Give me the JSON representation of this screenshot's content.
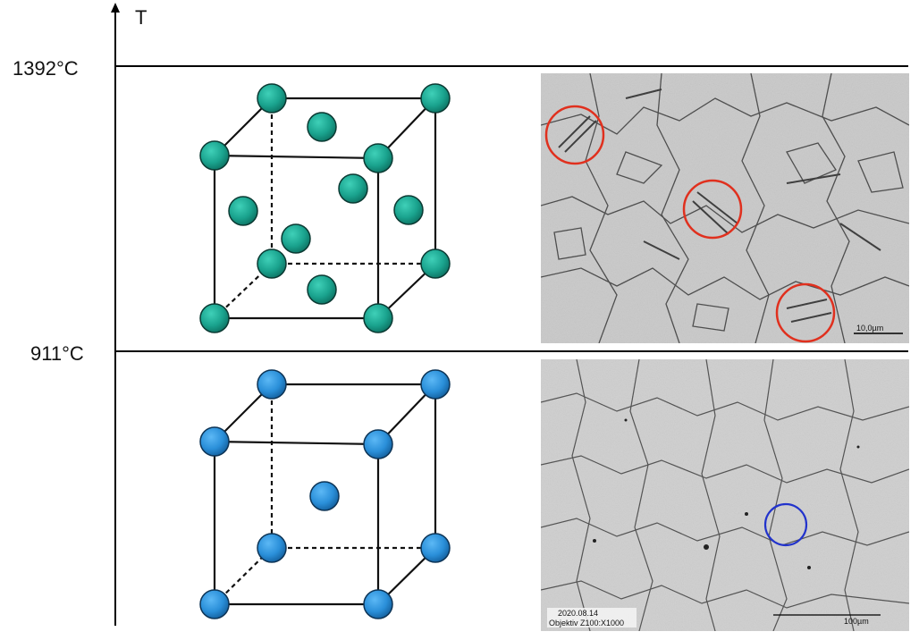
{
  "axis": {
    "label": "T"
  },
  "temperatures": {
    "upper": "1392°C",
    "lower": "911°C"
  },
  "colors": {
    "fcc_atom": "#1aa38e",
    "bcc_atom": "#2a8fd9",
    "grain_circle_red": "#e0301e",
    "grain_circle_blue": "#2233cc"
  },
  "micrograph_top": {
    "scale_bar": "10,0µm"
  },
  "micrograph_bottom": {
    "date": "2020.08.14",
    "objective": "Objektiv Z100:X1000",
    "scale_bar": "100µm"
  }
}
